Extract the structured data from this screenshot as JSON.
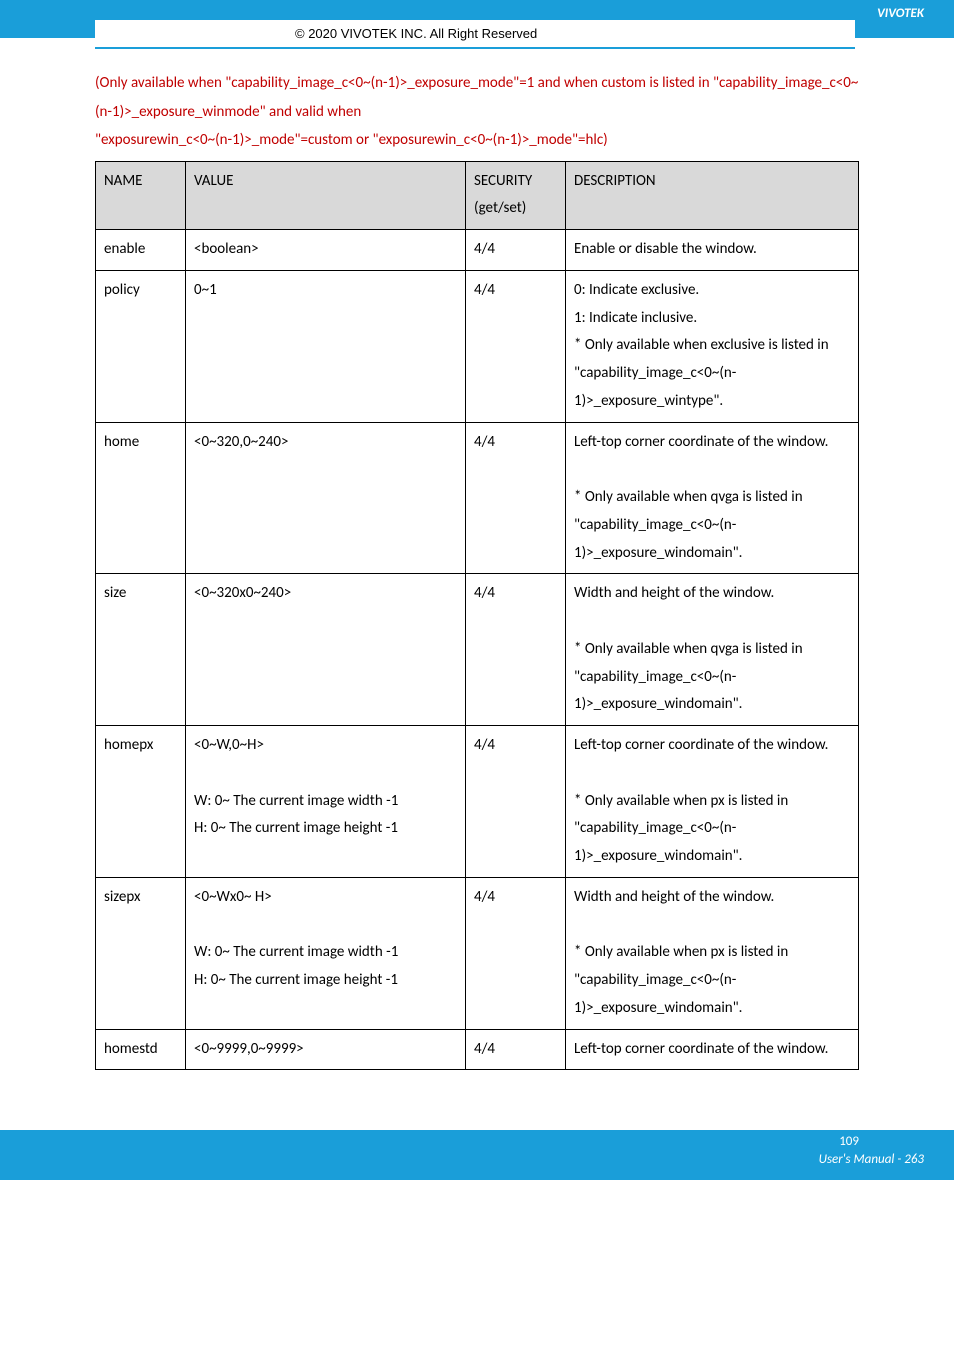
{
  "header": {
    "brand": "VIVOTEK",
    "copyright": "© 2020 VIVOTEK INC. All Right Reserved"
  },
  "intro": {
    "line1": "(Only available when \"capability_image_c<0~(n-1)>_exposure_mode\"=1 and when custom is listed in \"capability_image_c<0~(n-1)>_exposure_winmode\" and valid when",
    "line2": "\"exposurewin_c<0~(n-1)>_mode\"=custom or \"exposurewin_c<0~(n-1)>_mode\"=hlc)"
  },
  "table": {
    "headers": {
      "name": "NAME",
      "value": "VALUE",
      "security": "SECURITY (get/set)",
      "security_l1": "SECURITY",
      "security_l2": "(get/set)",
      "description": "DESCRIPTION"
    },
    "rows": [
      {
        "name": "enable",
        "value": "<boolean>",
        "security": "4/4",
        "description": "Enable or disable the window."
      },
      {
        "name": "policy",
        "value": "0~1",
        "security": "4/4",
        "description": "0: Indicate exclusive.\n1: Indicate inclusive.\n* Only available when exclusive is listed in \"capability_image_c<0~(n-1)>_exposure_wintype\"."
      },
      {
        "name": "home",
        "value": "<0~320,0~240>",
        "security": "4/4",
        "description": "Left-top corner coordinate of the window.\n\n* Only available when qvga is listed in \"capability_image_c<0~(n-1)>_exposure_windomain\"."
      },
      {
        "name": "size",
        "value": "<0~320x0~240>",
        "security": "4/4",
        "description": "Width and height of the window.\n\n* Only available when qvga is listed in \"capability_image_c<0~(n-1)>_exposure_windomain\"."
      },
      {
        "name": "homepx",
        "value": "<0~W,0~H>\n\nW: 0~ The current image width -1\nH: 0~ The current image height -1",
        "security": "4/4",
        "description": "Left-top corner coordinate of the window.\n\n* Only available when px is listed in \"capability_image_c<0~(n-1)>_exposure_windomain\"."
      },
      {
        "name": "sizepx",
        "value": "<0~Wx0~ H>\n\nW: 0~ The current image width -1\nH: 0~ The current image height -1",
        "security": "4/4",
        "description": "Width and height of the window.\n\n* Only available when px is listed in \"capability_image_c<0~(n-1)>_exposure_windomain\"."
      },
      {
        "name": "homestd",
        "value": "<0~9999,0~9999>",
        "security": "4/4",
        "description": "Left-top corner coordinate of the window.\n"
      }
    ]
  },
  "footer": {
    "page_inner": "109",
    "manual_page": "User's Manual - 263"
  },
  "colors": {
    "brand_blue": "#1a9ed9",
    "header_gray": "#d9d9d9",
    "intro_red": "#c00000",
    "text": "#000000",
    "white": "#ffffff"
  }
}
